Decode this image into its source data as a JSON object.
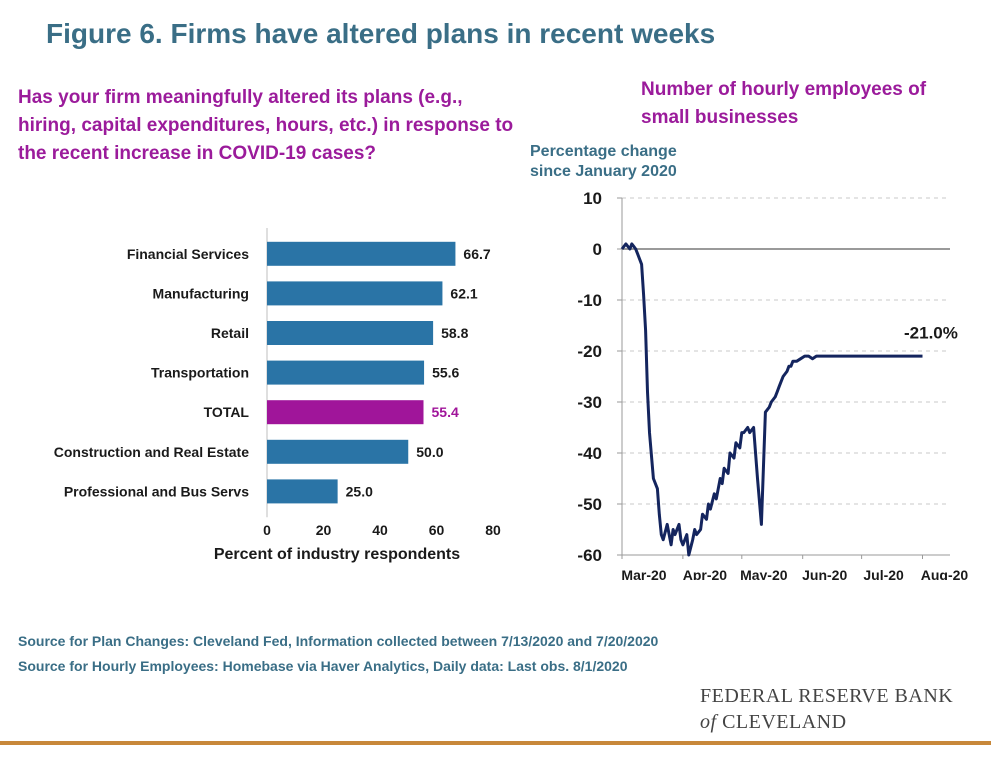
{
  "figure_title": "Figure 6. Firms have altered plans in recent weeks",
  "left_question": "Has your firm meaningfully altered its plans (e.g., hiring, capital expenditures, hours, etc.) in response to the recent increase in COVID-19 cases?",
  "right_title": "Number of hourly employees of small businesses",
  "sources": [
    "Source for Plan Changes: Cleveland Fed, Information collected between 7/13/2020 and 7/20/2020",
    "Source for Hourly Employees: Homebase via Haver Analytics, Daily data: Last obs. 8/1/2020"
  ],
  "logo": {
    "line1": "FEDERAL RESERVE BANK",
    "line2_italic": "of",
    "line2_rest": "CLEVELAND"
  },
  "colors": {
    "title": "#3a6e86",
    "purple": "#9b1b9b",
    "bar": "#2a74a6",
    "highlight_bar": "#a0159a",
    "line": "#14255e",
    "rule": "#c8883a"
  },
  "chart_data": [
    {
      "type": "bar",
      "orientation": "horizontal",
      "categories": [
        "Financial Services",
        "Manufacturing",
        "Retail",
        "Transportation",
        "TOTAL",
        "Construction and Real Estate",
        "Professional and Bus Servs"
      ],
      "values": [
        66.7,
        62.1,
        58.8,
        55.6,
        55.4,
        50.0,
        25.0
      ],
      "value_labels": [
        "66.7",
        "62.1",
        "58.8",
        "55.6",
        "55.4",
        "50.0",
        "25.0"
      ],
      "highlight": "TOTAL",
      "xlabel": "Percent of industry respondents",
      "xlim": [
        0,
        80
      ],
      "xticks": [
        0,
        20,
        40,
        60,
        80
      ]
    },
    {
      "type": "line",
      "title": "Number of hourly employees of small businesses",
      "ylabel": "Percentage change since January 2020",
      "ylim": [
        -60,
        10
      ],
      "yticks": [
        10,
        0,
        -10,
        -20,
        -30,
        -40,
        -50,
        -60
      ],
      "xticks": [
        "Mar-20",
        "Apr-20",
        "May-20",
        "Jun-20",
        "Jul-20",
        "Aug-20"
      ],
      "grid": true,
      "annotation": "-21.0%",
      "series": [
        {
          "x": [
            "2020-03-01",
            "2020-03-03",
            "2020-03-05",
            "2020-03-06",
            "2020-03-08",
            "2020-03-09",
            "2020-03-11",
            "2020-03-12",
            "2020-03-13",
            "2020-03-14",
            "2020-03-15",
            "2020-03-17",
            "2020-03-19",
            "2020-03-20",
            "2020-03-21",
            "2020-03-22",
            "2020-03-24",
            "2020-03-26",
            "2020-03-27",
            "2020-03-28",
            "2020-03-30",
            "2020-03-31",
            "2020-04-01",
            "2020-04-03",
            "2020-04-04",
            "2020-04-06",
            "2020-04-07",
            "2020-04-08",
            "2020-04-10",
            "2020-04-11",
            "2020-04-13",
            "2020-04-14",
            "2020-04-15",
            "2020-04-17",
            "2020-04-18",
            "2020-04-20",
            "2020-04-21",
            "2020-04-22",
            "2020-04-24",
            "2020-04-25",
            "2020-04-27",
            "2020-04-28",
            "2020-04-30",
            "2020-05-01",
            "2020-05-02",
            "2020-05-04",
            "2020-05-05",
            "2020-05-07",
            "2020-05-09",
            "2020-05-11",
            "2020-05-13",
            "2020-05-15",
            "2020-05-16",
            "2020-05-18",
            "2020-05-19",
            "2020-05-20",
            "2020-05-21",
            "2020-05-22",
            "2020-05-24",
            "2020-05-25",
            "2020-05-26",
            "2020-05-27",
            "2020-05-29",
            "2020-05-31",
            "2020-06-02",
            "2020-06-04",
            "2020-06-06",
            "2020-06-08",
            "2020-06-10",
            "2020-06-12",
            "2020-06-14",
            "2020-06-16",
            "2020-06-18",
            "2020-06-20",
            "2020-06-22",
            "2020-06-24",
            "2020-06-27",
            "2020-06-30",
            "2020-07-01",
            "2020-07-02",
            "2020-07-03",
            "2020-07-04",
            "2020-07-05",
            "2020-07-07",
            "2020-07-08",
            "2020-07-10",
            "2020-07-13",
            "2020-07-16",
            "2020-07-19",
            "2020-07-22",
            "2020-07-25",
            "2020-07-28",
            "2020-08-01"
          ],
          "y": [
            0,
            1,
            0,
            1,
            0,
            -1,
            -3,
            -9,
            -16,
            -28,
            -36,
            -45,
            -47,
            -52,
            -56,
            -57,
            -54,
            -58,
            -55,
            -56,
            -54,
            -57,
            -58,
            -56,
            -60,
            -57,
            -55,
            -56,
            -55,
            -52,
            -53,
            -50,
            -51,
            -48,
            -49,
            -45,
            -46,
            -43,
            -44,
            -40,
            -41,
            -38,
            -39,
            -36,
            -36,
            -35,
            -36,
            -35,
            -45,
            -54,
            -32,
            -31,
            -30,
            -29,
            -28,
            -27,
            -26,
            -25,
            -24,
            -23,
            -23,
            -22,
            -22,
            -21.5,
            -21,
            -21,
            -21.5,
            -21,
            -21,
            -21,
            -21,
            -21,
            -21,
            -21,
            -21,
            -21,
            -21,
            -21,
            -21,
            -21,
            -21,
            -21,
            -21,
            -21,
            -21,
            -21,
            -21,
            -21,
            -21,
            -21,
            -21,
            -21,
            -21
          ]
        }
      ]
    }
  ]
}
